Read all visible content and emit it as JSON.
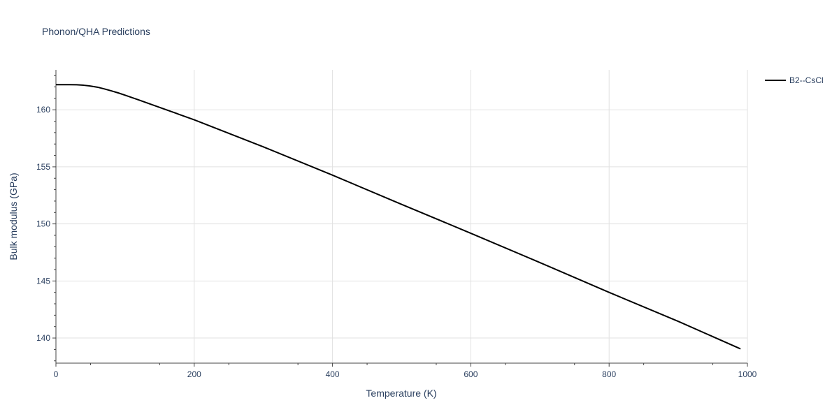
{
  "chart_data": {
    "type": "line",
    "title": "Phonon/QHA Predictions",
    "xlabel": "Temperature (K)",
    "ylabel": "Bulk modulus (GPa)",
    "xlim": [
      0,
      1000
    ],
    "ylim": [
      137.8,
      163.5
    ],
    "xticks": [
      0,
      200,
      400,
      600,
      800,
      1000
    ],
    "yticks": [
      140,
      145,
      150,
      155,
      160
    ],
    "grid": true,
    "legend_position": "top-right",
    "series": [
      {
        "name": "B2--CsCl",
        "color": "#000000",
        "x": [
          0,
          10,
          20,
          30,
          40,
          50,
          60,
          70,
          80,
          90,
          100,
          120,
          150,
          200,
          300,
          400,
          500,
          600,
          700,
          800,
          900,
          990
        ],
        "y": [
          162.2,
          162.2,
          162.2,
          162.19,
          162.15,
          162.08,
          161.98,
          161.83,
          161.66,
          161.48,
          161.28,
          160.86,
          160.21,
          159.12,
          156.75,
          154.27,
          151.71,
          149.18,
          146.61,
          144.0,
          141.46,
          139.05
        ]
      }
    ]
  }
}
